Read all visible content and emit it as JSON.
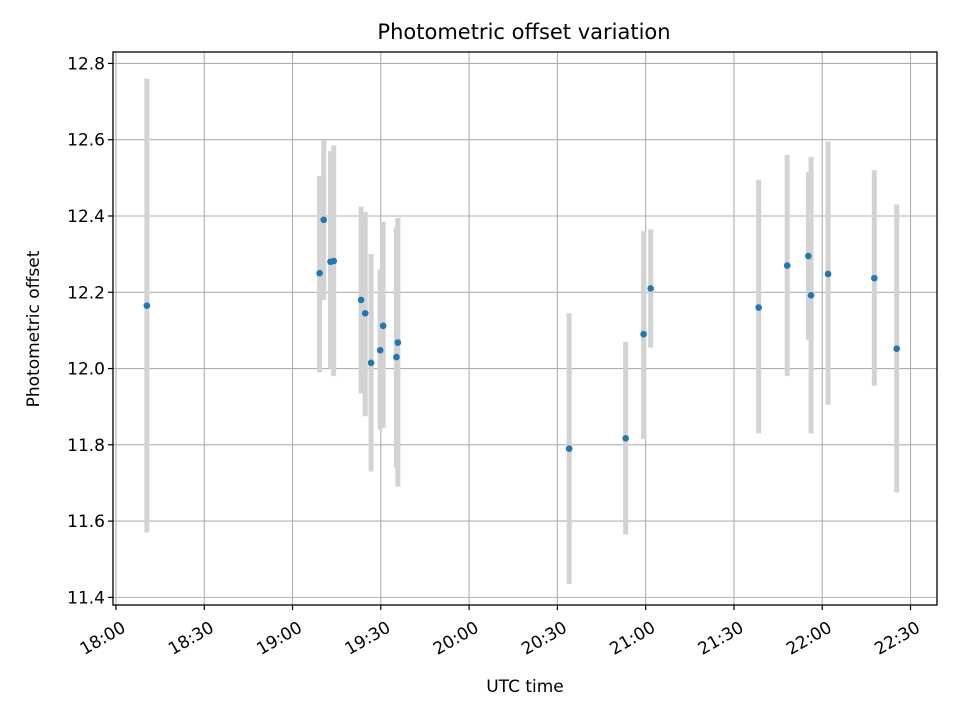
{
  "chart_data": {
    "type": "scatter",
    "title": "Photometric offset variation",
    "xlabel": "UTC time",
    "ylabel": "Photometric offset",
    "x_ticks": [
      "18:00",
      "18:30",
      "19:00",
      "19:30",
      "20:00",
      "20:30",
      "21:00",
      "21:30",
      "22:00",
      "22:30"
    ],
    "xlim": [
      "17:59:00",
      "22:39:00"
    ],
    "ylim": [
      11.38,
      12.83
    ],
    "y_ticks": [
      11.4,
      11.6,
      11.8,
      12.0,
      12.2,
      12.4,
      12.6,
      12.8
    ],
    "grid": true,
    "colors": {
      "point": "#1f77b4",
      "errorbar": "#d3d3d3",
      "grid": "#b0b0b0"
    },
    "points": [
      {
        "x": "18:10:30",
        "y": 12.165,
        "ylow": 11.57,
        "yhigh": 12.76
      },
      {
        "x": "19:09:12",
        "y": 12.25,
        "ylow": 11.99,
        "yhigh": 12.505
      },
      {
        "x": "19:10:36",
        "y": 12.39,
        "ylow": 12.18,
        "yhigh": 12.6
      },
      {
        "x": "19:12:54",
        "y": 12.28,
        "ylow": 12.0,
        "yhigh": 12.57
      },
      {
        "x": "19:14:00",
        "y": 12.282,
        "ylow": 11.98,
        "yhigh": 12.585
      },
      {
        "x": "19:23:18",
        "y": 12.18,
        "ylow": 11.935,
        "yhigh": 12.425
      },
      {
        "x": "19:24:42",
        "y": 12.145,
        "ylow": 11.875,
        "yhigh": 12.41
      },
      {
        "x": "19:26:42",
        "y": 12.015,
        "ylow": 11.73,
        "yhigh": 12.3
      },
      {
        "x": "19:29:48",
        "y": 12.048,
        "ylow": 11.84,
        "yhigh": 12.26
      },
      {
        "x": "19:30:48",
        "y": 12.112,
        "ylow": 11.845,
        "yhigh": 12.385
      },
      {
        "x": "19:35:18",
        "y": 12.03,
        "ylow": 11.74,
        "yhigh": 12.37
      },
      {
        "x": "19:35:48",
        "y": 12.068,
        "ylow": 11.69,
        "yhigh": 12.395
      },
      {
        "x": "20:34:00",
        "y": 11.79,
        "ylow": 11.435,
        "yhigh": 12.145
      },
      {
        "x": "20:53:12",
        "y": 11.817,
        "ylow": 11.565,
        "yhigh": 12.07
      },
      {
        "x": "20:59:18",
        "y": 12.09,
        "ylow": 11.815,
        "yhigh": 12.36
      },
      {
        "x": "21:01:42",
        "y": 12.21,
        "ylow": 12.055,
        "yhigh": 12.365
      },
      {
        "x": "21:38:24",
        "y": 12.16,
        "ylow": 11.83,
        "yhigh": 12.495
      },
      {
        "x": "21:48:06",
        "y": 12.27,
        "ylow": 11.98,
        "yhigh": 12.56
      },
      {
        "x": "21:55:18",
        "y": 12.295,
        "ylow": 12.075,
        "yhigh": 12.515
      },
      {
        "x": "21:56:12",
        "y": 12.192,
        "ylow": 11.83,
        "yhigh": 12.555
      },
      {
        "x": "22:02:00",
        "y": 12.248,
        "ylow": 11.905,
        "yhigh": 12.595
      },
      {
        "x": "22:17:42",
        "y": 12.237,
        "ylow": 11.955,
        "yhigh": 12.52
      },
      {
        "x": "22:25:18",
        "y": 12.052,
        "ylow": 11.675,
        "yhigh": 12.43
      }
    ]
  }
}
